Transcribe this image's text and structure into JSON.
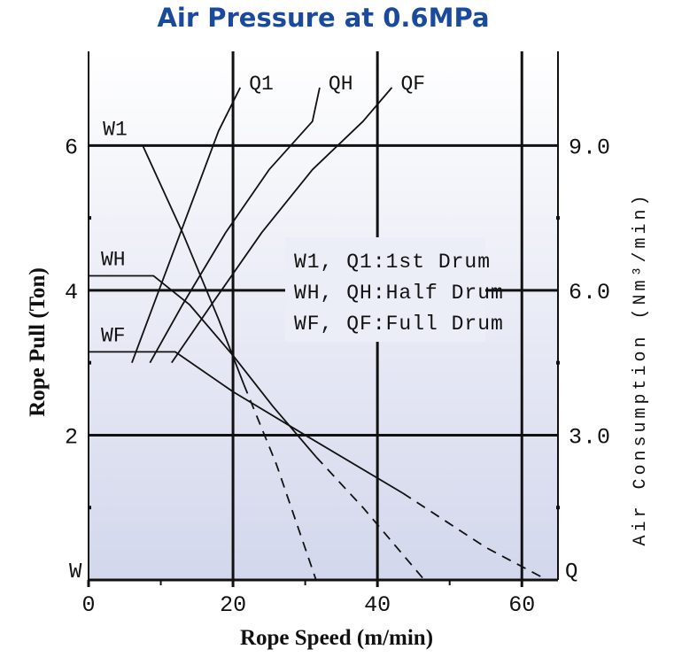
{
  "chart_data": {
    "type": "line",
    "title": "Air Pressure at 0.6MPa",
    "xlabel": "Rope Speed (m/min)",
    "ylabel": "Rope Pull (Ton)",
    "y2label": "Air Consumption (Nm³/min)",
    "xlim": [
      0,
      65
    ],
    "ylim": [
      0,
      7.3
    ],
    "y2lim": [
      0,
      10.95
    ],
    "x_ticks": [
      "0",
      "20",
      "40",
      "60"
    ],
    "x_tick_values": [
      0,
      20,
      40,
      60
    ],
    "x_minor_ticks": [
      10,
      30,
      50
    ],
    "y_ticks": [
      "2",
      "4",
      "6"
    ],
    "y_tick_values": [
      2,
      4,
      6
    ],
    "y_minor_ticks": [
      1,
      3,
      5
    ],
    "y2_ticks": [
      "3.0",
      "6.0",
      "9.0"
    ],
    "y2_tick_values": [
      3,
      6,
      9
    ],
    "y2_minor_ticks": [
      1.5,
      4.5,
      7.5
    ],
    "corner_left": "W",
    "corner_right": "Q",
    "grid": "major",
    "legend": {
      "placement": "center-right",
      "lines": [
        "W1, Q1:1st  Drum",
        "WH, QH:Half Drum",
        "WF, QF:Full Drum"
      ]
    },
    "series": [
      {
        "name": "W1",
        "axis": "left",
        "style": "solid",
        "points": [
          [
            7.5,
            6.0
          ],
          [
            13,
            4.8
          ],
          [
            18,
            3.6
          ],
          [
            21.5,
            2.7
          ]
        ],
        "dashed_points": [
          [
            21.5,
            2.7
          ],
          [
            26,
            1.6
          ],
          [
            31.5,
            0.0
          ]
        ]
      },
      {
        "name": "WH",
        "axis": "left",
        "style": "solid",
        "points": [
          [
            0,
            4.2
          ],
          [
            9,
            4.2
          ],
          [
            14,
            3.8
          ],
          [
            20,
            3.1
          ],
          [
            25.5,
            2.4
          ],
          [
            31.5,
            1.7
          ]
        ],
        "dashed_points": [
          [
            31.5,
            1.7
          ],
          [
            38,
            1.0
          ],
          [
            46.5,
            0.0
          ]
        ]
      },
      {
        "name": "WF",
        "axis": "left",
        "style": "solid",
        "points": [
          [
            0,
            3.15
          ],
          [
            12,
            3.15
          ],
          [
            20,
            2.6
          ],
          [
            30,
            2.0
          ],
          [
            43.5,
            1.2
          ]
        ],
        "dashed_points": [
          [
            43.5,
            1.2
          ],
          [
            55,
            0.45
          ],
          [
            63.5,
            0.0
          ]
        ]
      },
      {
        "name": "Q1",
        "axis": "right",
        "style": "solid",
        "points": [
          [
            6,
            4.5
          ],
          [
            9,
            5.7
          ],
          [
            12,
            6.9
          ],
          [
            15,
            8.1
          ],
          [
            18,
            9.3
          ],
          [
            21,
            10.2
          ]
        ]
      },
      {
        "name": "QH",
        "axis": "right",
        "style": "solid",
        "points": [
          [
            8.5,
            4.5
          ],
          [
            13,
            5.7
          ],
          [
            19,
            7.2
          ],
          [
            25,
            8.5
          ],
          [
            31,
            9.5
          ],
          [
            32,
            10.2
          ]
        ]
      },
      {
        "name": "QF",
        "axis": "right",
        "style": "solid",
        "points": [
          [
            11.5,
            4.5
          ],
          [
            17,
            5.7
          ],
          [
            24,
            7.2
          ],
          [
            31,
            8.5
          ],
          [
            38,
            9.5
          ],
          [
            42,
            10.2
          ]
        ]
      }
    ],
    "series_label_positions": {
      "W1": "start",
      "WH": "start",
      "WF": "start",
      "Q1": "end",
      "QH": "end",
      "QF": "end"
    }
  }
}
